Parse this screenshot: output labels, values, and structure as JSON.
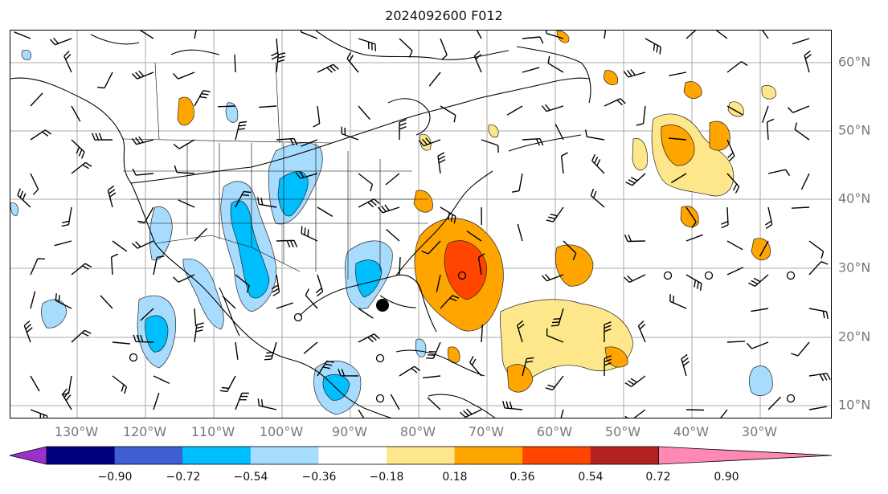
{
  "title": "2024092600 F012",
  "lon_labels": [
    "130°W",
    "120°W",
    "110°W",
    "100°W",
    "90°W",
    "80°W",
    "70°W",
    "60°W",
    "50°W",
    "40°W",
    "30°W"
  ],
  "lat_labels": [
    "60°N",
    "50°N",
    "40°N",
    "30°N",
    "20°N",
    "10°N"
  ],
  "colorbar": {
    "ticks": [
      "−0.90",
      "−0.72",
      "−0.54",
      "−0.36",
      "−0.18",
      "0.18",
      "0.36",
      "0.54",
      "0.72",
      "0.90"
    ],
    "colors": [
      "#9932cc",
      "#00007f",
      "#3d5fd1",
      "#00bfff",
      "#a8dcff",
      "#ffffff",
      "#fde78a",
      "#ffa500",
      "#ff4500",
      "#b22222",
      "#ff88b4"
    ]
  }
}
